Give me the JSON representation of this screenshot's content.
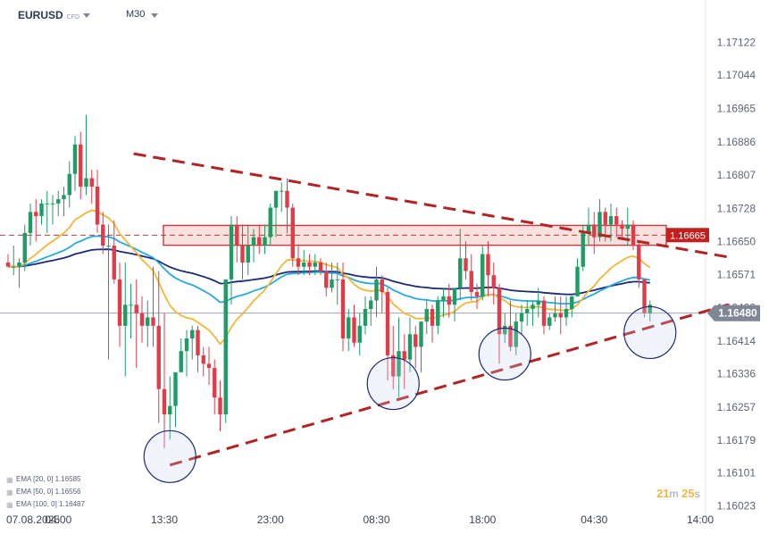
{
  "header": {
    "symbol": "EURUSD",
    "symbol_type": "CFD",
    "timeframe": "M30"
  },
  "timer": {
    "minutes": "21",
    "m_unit": "m",
    "seconds": "25",
    "s_unit": "s"
  },
  "legend": [
    {
      "label": "EMA  [20,  0]  1.16585"
    },
    {
      "label": "EMA  [50,  0]  1.16556"
    },
    {
      "label": "EMA  [100,  0]  1.16487"
    }
  ],
  "colors": {
    "up": "#1e9c64",
    "down": "#e13b4a",
    "ema20": "#f3b63a",
    "ema50": "#2aa8e0",
    "ema100": "#1d2a78",
    "trend": "#b42323",
    "zone_fill": "#fbe0e0",
    "zone_edge": "#c93a3a",
    "price_badge": "#7f8794",
    "level_badge": "#c21f1f"
  },
  "chart_data": {
    "type": "candlestick",
    "symbol": "EURUSD",
    "timeframe": "M30",
    "y_ticks": [
      "1.17122",
      "1.17044",
      "1.16965",
      "1.16886",
      "1.16807",
      "1.16728",
      "1.16650",
      "1.16571",
      "1.16493",
      "1.16414",
      "1.16336",
      "1.16257",
      "1.16179",
      "1.16101",
      "1.16023"
    ],
    "x_ticks": [
      {
        "label": "07.08.2025",
        "t": 0
      },
      {
        "label": "04:00",
        "t": 9
      },
      {
        "label": "13:30",
        "t": 28
      },
      {
        "label": "23:00",
        "t": 47
      },
      {
        "label": "08:30",
        "t": 66
      },
      {
        "label": "18:00",
        "t": 85
      },
      {
        "label": "04:30",
        "t": 105
      },
      {
        "label": "14:00",
        "t": 124
      }
    ],
    "current_price": "1.16480",
    "level_price": "1.16665",
    "ylim": [
      1.1602,
      1.1718
    ],
    "resistance_zone": [
      1.16641,
      1.16688
    ],
    "trendlines": [
      {
        "name": "upper",
        "from": [
          22.5,
          1.16858
        ],
        "to": [
          129,
          1.16613
        ]
      },
      {
        "name": "lower",
        "from": [
          29,
          1.1612
        ],
        "to": [
          129,
          1.165
        ]
      }
    ],
    "highlights": [
      {
        "t": 29,
        "price": 1.1614
      },
      {
        "t": 69,
        "price": 1.16313
      },
      {
        "t": 89,
        "price": 1.16383
      },
      {
        "t": 115,
        "price": 1.16434
      }
    ],
    "candles": [
      [
        1.166,
        1.1662,
        1.1659,
        1.1659
      ],
      [
        1.1659,
        1.1664,
        1.1657,
        1.1659
      ],
      [
        1.1659,
        1.1661,
        1.1654,
        1.166
      ],
      [
        1.166,
        1.1669,
        1.1658,
        1.1667
      ],
      [
        1.1667,
        1.1674,
        1.1664,
        1.1672
      ],
      [
        1.1672,
        1.1675,
        1.1665,
        1.1671
      ],
      [
        1.1671,
        1.1675,
        1.1669,
        1.1674
      ],
      [
        1.1674,
        1.1677,
        1.1667,
        1.1674
      ],
      [
        1.1674,
        1.1676,
        1.1669,
        1.1674
      ],
      [
        1.1674,
        1.1677,
        1.1671,
        1.1675
      ],
      [
        1.1675,
        1.1678,
        1.1671,
        1.1676
      ],
      [
        1.1676,
        1.1684,
        1.1673,
        1.1681
      ],
      [
        1.1681,
        1.169,
        1.1677,
        1.1688
      ],
      [
        1.1688,
        1.1691,
        1.1675,
        1.1678
      ],
      [
        1.1678,
        1.1695,
        1.1676,
        1.168
      ],
      [
        1.168,
        1.1682,
        1.1674,
        1.1678
      ],
      [
        1.1678,
        1.1682,
        1.1667,
        1.1669
      ],
      [
        1.1669,
        1.1672,
        1.1662,
        1.1664
      ],
      [
        1.1664,
        1.1669,
        1.1637,
        1.1664
      ],
      [
        1.1664,
        1.167,
        1.1655,
        1.1656
      ],
      [
        1.1656,
        1.166,
        1.164,
        1.1645
      ],
      [
        1.1645,
        1.166,
        1.1633,
        1.165
      ],
      [
        1.165,
        1.1655,
        1.1642,
        1.165
      ],
      [
        1.165,
        1.1656,
        1.1635,
        1.1648
      ],
      [
        1.1648,
        1.1652,
        1.1641,
        1.1645
      ],
      [
        1.1645,
        1.1651,
        1.164,
        1.1647
      ],
      [
        1.1647,
        1.1659,
        1.164,
        1.1645
      ],
      [
        1.1645,
        1.1658,
        1.1622,
        1.163
      ],
      [
        1.163,
        1.1648,
        1.1616,
        1.1624
      ],
      [
        1.1624,
        1.1633,
        1.1618,
        1.1626
      ],
      [
        1.1626,
        1.1634,
        1.1621,
        1.1634
      ],
      [
        1.1634,
        1.1642,
        1.1634,
        1.1639
      ],
      [
        1.1639,
        1.1644,
        1.1633,
        1.1642
      ],
      [
        1.1642,
        1.1645,
        1.1637,
        1.1644
      ],
      [
        1.1644,
        1.1645,
        1.1634,
        1.1638
      ],
      [
        1.1638,
        1.164,
        1.1633,
        1.1636
      ],
      [
        1.1636,
        1.164,
        1.1631,
        1.1635
      ],
      [
        1.1635,
        1.1637,
        1.1624,
        1.1628
      ],
      [
        1.1628,
        1.1632,
        1.162,
        1.1624
      ],
      [
        1.1624,
        1.1656,
        1.1622,
        1.1656
      ],
      [
        1.1656,
        1.1671,
        1.165,
        1.1669
      ],
      [
        1.1669,
        1.1671,
        1.166,
        1.1664
      ],
      [
        1.1664,
        1.1669,
        1.1656,
        1.166
      ],
      [
        1.166,
        1.1669,
        1.1657,
        1.1664
      ],
      [
        1.1664,
        1.1668,
        1.166,
        1.1666
      ],
      [
        1.1666,
        1.1669,
        1.1662,
        1.1664
      ],
      [
        1.1664,
        1.1669,
        1.1662,
        1.1666
      ],
      [
        1.1666,
        1.1674,
        1.1664,
        1.1673
      ],
      [
        1.1673,
        1.1676,
        1.1666,
        1.1677
      ],
      [
        1.1677,
        1.1679,
        1.1672,
        1.1677
      ],
      [
        1.1677,
        1.168,
        1.1667,
        1.1673
      ],
      [
        1.1673,
        1.1674,
        1.1659,
        1.1661
      ],
      [
        1.1661,
        1.1664,
        1.1657,
        1.1659
      ],
      [
        1.1659,
        1.1663,
        1.1657,
        1.166
      ],
      [
        1.166,
        1.1662,
        1.1657,
        1.1659
      ],
      [
        1.1659,
        1.1662,
        1.1657,
        1.166
      ],
      [
        1.166,
        1.1661,
        1.1657,
        1.1658
      ],
      [
        1.1658,
        1.166,
        1.1652,
        1.1654
      ],
      [
        1.1654,
        1.166,
        1.1653,
        1.1656
      ],
      [
        1.1656,
        1.166,
        1.165,
        1.1656
      ],
      [
        1.1656,
        1.166,
        1.1639,
        1.1642
      ],
      [
        1.1642,
        1.1649,
        1.1639,
        1.1647
      ],
      [
        1.1647,
        1.165,
        1.164,
        1.1641
      ],
      [
        1.1641,
        1.1648,
        1.1638,
        1.1645
      ],
      [
        1.1645,
        1.1652,
        1.1643,
        1.1649
      ],
      [
        1.1649,
        1.1652,
        1.1645,
        1.1651
      ],
      [
        1.1651,
        1.1659,
        1.1647,
        1.1656
      ],
      [
        1.1656,
        1.1657,
        1.1648,
        1.1653
      ],
      [
        1.1653,
        1.1654,
        1.1632,
        1.1638
      ],
      [
        1.1638,
        1.1645,
        1.163,
        1.1633
      ],
      [
        1.1633,
        1.1647,
        1.1628,
        1.1639
      ],
      [
        1.1639,
        1.1643,
        1.163,
        1.1637
      ],
      [
        1.1637,
        1.1647,
        1.1634,
        1.1643
      ],
      [
        1.1643,
        1.1645,
        1.1635,
        1.164
      ],
      [
        1.164,
        1.1646,
        1.1634,
        1.1646
      ],
      [
        1.1646,
        1.1651,
        1.1643,
        1.1649
      ],
      [
        1.1649,
        1.165,
        1.1641,
        1.1645
      ],
      [
        1.1645,
        1.1652,
        1.1643,
        1.1651
      ],
      [
        1.1651,
        1.1654,
        1.1647,
        1.1652
      ],
      [
        1.1652,
        1.1655,
        1.1647,
        1.165
      ],
      [
        1.165,
        1.1654,
        1.1646,
        1.1654
      ],
      [
        1.1654,
        1.1668,
        1.1651,
        1.1661
      ],
      [
        1.1661,
        1.1665,
        1.1656,
        1.1658
      ],
      [
        1.1658,
        1.1662,
        1.1651,
        1.1653
      ],
      [
        1.1653,
        1.1655,
        1.1649,
        1.1652
      ],
      [
        1.1652,
        1.1664,
        1.1651,
        1.1662
      ],
      [
        1.1662,
        1.1665,
        1.1652,
        1.1657
      ],
      [
        1.1657,
        1.166,
        1.165,
        1.1654
      ],
      [
        1.1654,
        1.1655,
        1.1636,
        1.1643
      ],
      [
        1.1643,
        1.1648,
        1.1641,
        1.1645
      ],
      [
        1.1645,
        1.1651,
        1.1639,
        1.164
      ],
      [
        1.164,
        1.1648,
        1.1638,
        1.1646
      ],
      [
        1.1646,
        1.165,
        1.1643,
        1.1648
      ],
      [
        1.1648,
        1.1651,
        1.1645,
        1.1649
      ],
      [
        1.1649,
        1.1651,
        1.1645,
        1.165
      ],
      [
        1.165,
        1.1654,
        1.1647,
        1.1651
      ],
      [
        1.1651,
        1.1652,
        1.1643,
        1.1645
      ],
      [
        1.1645,
        1.1648,
        1.1644,
        1.1647
      ],
      [
        1.1647,
        1.1652,
        1.1646,
        1.1648
      ],
      [
        1.1648,
        1.1652,
        1.1643,
        1.1647
      ],
      [
        1.1647,
        1.1652,
        1.1645,
        1.1649
      ],
      [
        1.1649,
        1.1652,
        1.1647,
        1.1652
      ],
      [
        1.1652,
        1.1661,
        1.1652,
        1.1659
      ],
      [
        1.1659,
        1.1669,
        1.1658,
        1.1667
      ],
      [
        1.1667,
        1.1673,
        1.1664,
        1.1669
      ],
      [
        1.1669,
        1.1672,
        1.1662,
        1.1666
      ],
      [
        1.1666,
        1.1675,
        1.1665,
        1.1672
      ],
      [
        1.1672,
        1.1673,
        1.1665,
        1.1669
      ],
      [
        1.1669,
        1.1674,
        1.1665,
        1.1671
      ],
      [
        1.1671,
        1.1673,
        1.1666,
        1.1669
      ],
      [
        1.1669,
        1.167,
        1.1666,
        1.1668
      ],
      [
        1.1668,
        1.1673,
        1.1664,
        1.1669
      ],
      [
        1.1669,
        1.167,
        1.1663,
        1.1664
      ],
      [
        1.1664,
        1.1665,
        1.1654,
        1.1656
      ],
      [
        1.1656,
        1.1656,
        1.1647,
        1.1648
      ],
      [
        1.1648,
        1.1651,
        1.1646,
        1.165
      ]
    ]
  }
}
